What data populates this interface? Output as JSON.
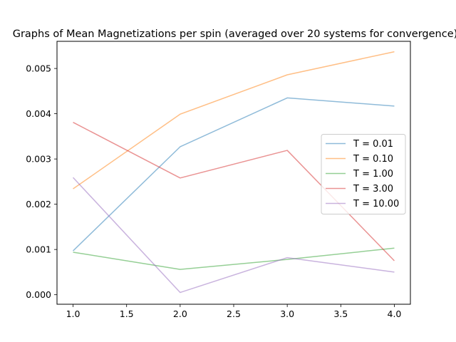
{
  "chart_data": {
    "type": "line",
    "title": "Graphs of Mean Magnetizations per spin (averaged over 20 systems for convergence)",
    "xlabel": "",
    "ylabel": "",
    "x": [
      1,
      2,
      3,
      4
    ],
    "xlim": [
      0.85,
      4.15
    ],
    "ylim": [
      -0.00021,
      0.0056
    ],
    "xticks": [
      1.0,
      1.5,
      2.0,
      2.5,
      3.0,
      3.5,
      4.0
    ],
    "xtick_labels": [
      "1.0",
      "1.5",
      "2.0",
      "2.5",
      "3.0",
      "3.5",
      "4.0"
    ],
    "yticks": [
      0.0,
      0.001,
      0.002,
      0.003,
      0.004,
      0.005
    ],
    "ytick_labels": [
      "0.000",
      "0.001",
      "0.002",
      "0.003",
      "0.004",
      "0.005"
    ],
    "grid": false,
    "legend_position": "center-right",
    "series": [
      {
        "name": "T = 0.01",
        "color": "#1f77b4",
        "values": [
          0.00097,
          0.00327,
          0.00435,
          0.00417
        ]
      },
      {
        "name": "T = 0.10",
        "color": "#ff7f0e",
        "values": [
          0.00234,
          0.00399,
          0.00486,
          0.00537
        ]
      },
      {
        "name": "T = 1.00",
        "color": "#2ca02c",
        "values": [
          0.00094,
          0.00056,
          0.00078,
          0.00103
        ]
      },
      {
        "name": "T = 3.00",
        "color": "#d62728",
        "values": [
          0.00381,
          0.00258,
          0.00319,
          0.00075
        ]
      },
      {
        "name": "T = 10.00",
        "color": "#9467bd",
        "values": [
          0.00259,
          5e-05,
          0.00082,
          0.0005
        ]
      }
    ]
  }
}
